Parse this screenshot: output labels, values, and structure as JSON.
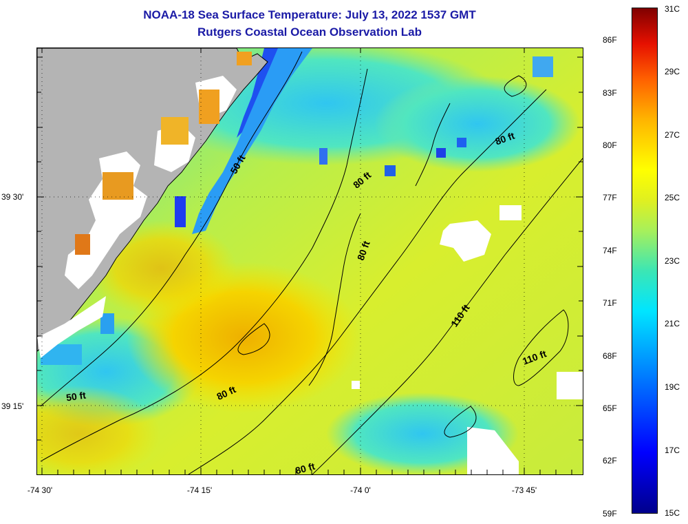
{
  "header": {
    "title": "NOAA-18 Sea Surface Temperature:  July 13, 2022 1537 GMT",
    "subtitle": "Rutgers Coastal Ocean Observation Lab"
  },
  "axes": {
    "longitude_labels": [
      "-74 30'",
      "-74 15'",
      "-74 0'",
      "-73 45'"
    ],
    "latitude_labels": [
      "39 30'",
      "39 15'"
    ]
  },
  "contour_labels": [
    "50 ft",
    "80 ft",
    "80 ft",
    "80 ft",
    "80 ft",
    "80 ft",
    "110 ft",
    "110 ft",
    "50 ft"
  ],
  "colorbar": {
    "fahrenheit_labels": [
      "86F",
      "83F",
      "80F",
      "77F",
      "74F",
      "71F",
      "68F",
      "65F",
      "62F",
      "59F"
    ],
    "celsius_labels": [
      "31C",
      "29C",
      "27C",
      "25C",
      "23C",
      "21C",
      "19C",
      "17C",
      "15C"
    ],
    "colors": [
      "#00008c",
      "#0000ff",
      "#0073ff",
      "#00e5ff",
      "#a8f05a",
      "#ffff00",
      "#ffb400",
      "#ff6000",
      "#800000"
    ]
  },
  "map_colors": {
    "land": "#b4b4b4",
    "cloud": "#ffffff",
    "warm_water": "#f0b400",
    "mid_water": "#d2f03c",
    "cool_water": "#50e6a0",
    "cold_water": "#1e6eff"
  }
}
